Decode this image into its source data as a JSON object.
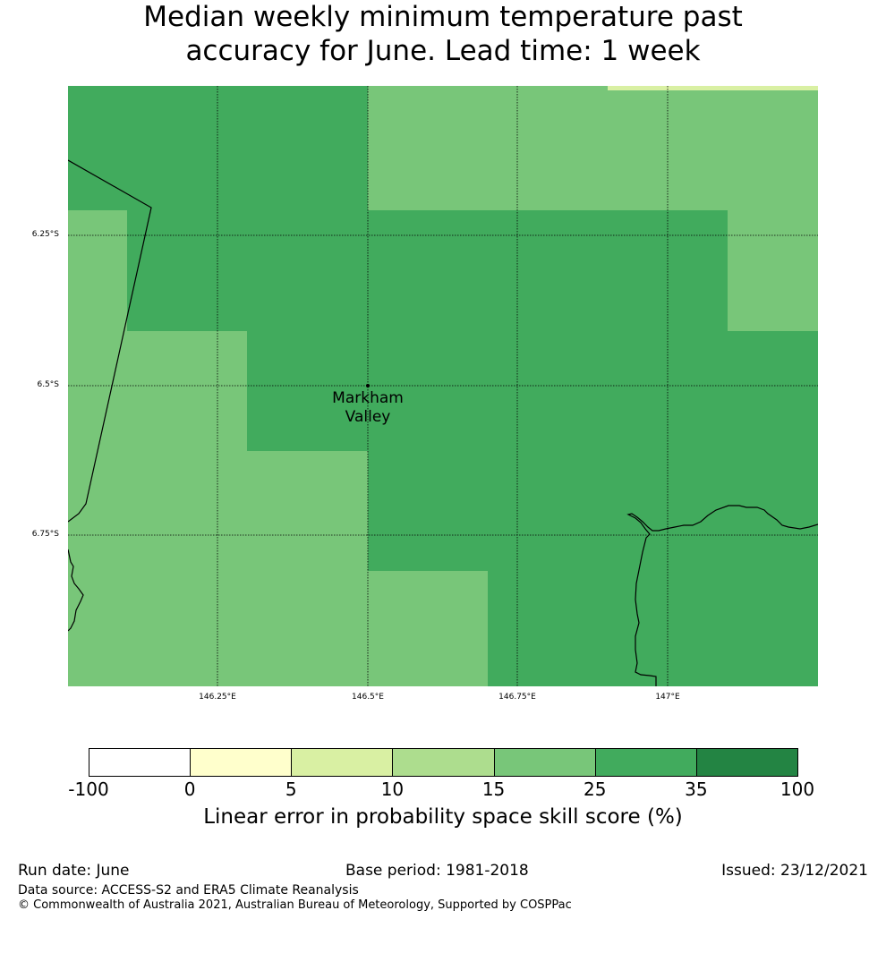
{
  "title": {
    "line1": "Median weekly minimum temperature past",
    "line2": "accuracy for June. Lead time: 1 week"
  },
  "map": {
    "lat_labels": [
      "6.25°S",
      "6.5°S",
      "6.75°S"
    ],
    "lon_labels": [
      "146.25°E",
      "146.5°E",
      "146.75°E",
      "147°E"
    ],
    "place": {
      "line1": "Markham",
      "line2": "Valley"
    }
  },
  "colorbar": {
    "ticks": [
      "-100",
      "0",
      "5",
      "10",
      "15",
      "25",
      "35",
      "100"
    ],
    "colors": [
      "#ffffff",
      "#ffffcc",
      "#d9f0a3",
      "#addd8e",
      "#78c679",
      "#41ab5d",
      "#238443"
    ],
    "label": "Linear error in probability space skill score (%)"
  },
  "footer": {
    "run_date": "Run date: June",
    "base_period": "Base period: 1981-2018",
    "issued": "Issued: 23/12/2021",
    "data_source": "Data source: ACCESS-S2 and ERA5 Climate Reanalysis",
    "copyright": "© Commonwealth of Australia 2021, Australian Bureau of Meteorology, Supported by COSPPac"
  }
}
